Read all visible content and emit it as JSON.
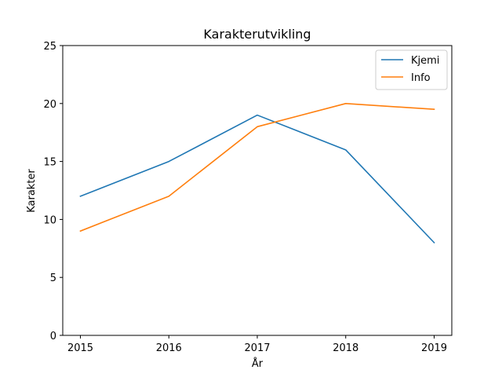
{
  "chart_data": {
    "type": "line",
    "title": "Karakterutvikling",
    "xlabel": "År",
    "ylabel": "Karakter",
    "x": [
      "2015",
      "2016",
      "2017",
      "2018",
      "2019"
    ],
    "ylim": [
      0,
      25
    ],
    "yticks": [
      0,
      5,
      10,
      15,
      20,
      25
    ],
    "grid": false,
    "legend_position": "top-right",
    "series": [
      {
        "name": "Kjemi",
        "color": "#1f77b4",
        "values": [
          12,
          15,
          19,
          16,
          8
        ]
      },
      {
        "name": "Info",
        "color": "#ff7f0e",
        "values": [
          9,
          12,
          18,
          20,
          19.5
        ]
      }
    ]
  }
}
